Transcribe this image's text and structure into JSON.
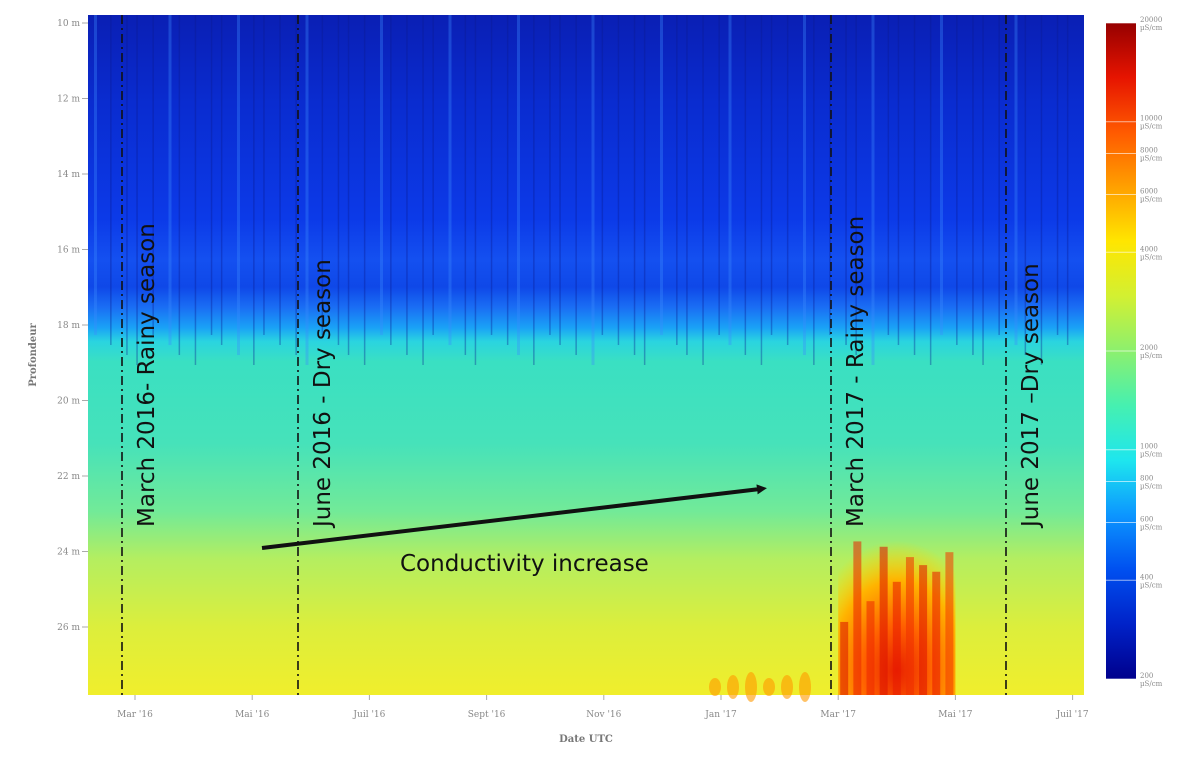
{
  "chart_data": {
    "type": "heatmap",
    "title": "",
    "xlabel": "Date UTC",
    "ylabel": "Profondeur",
    "x_ticks": [
      "Mar '16",
      "Mai '16",
      "Juil '16",
      "Sept '16",
      "Nov '16",
      "Jan '17",
      "Mar '17",
      "Mai '17",
      "Juil '17"
    ],
    "y_ticks": [
      "10 m",
      "12 m",
      "14 m",
      "16 m",
      "18 m",
      "20 m",
      "22 m",
      "24 m",
      "26 m"
    ],
    "ylim": [
      10,
      28
    ],
    "y_inverted": true,
    "grid": false,
    "colorbar": {
      "unit": "µS/cm",
      "scale": "log",
      "range": [
        200,
        20000
      ],
      "ticks": [
        200,
        400,
        600,
        800,
        1000,
        2000,
        4000,
        6000,
        8000,
        10000,
        20000
      ],
      "tick_labels": [
        "200",
        "400",
        "600",
        "800",
        "1000",
        "2000",
        "4000",
        "6000",
        "8000",
        "10000",
        "20000"
      ],
      "colors": [
        "#00008c",
        "#0022c8",
        "#0050f0",
        "#0c96ff",
        "#1ee6ee",
        "#46f0b0",
        "#8cf06e",
        "#d2f032",
        "#ffe600",
        "#ffa000",
        "#ff5a00",
        "#e61400",
        "#960000"
      ]
    },
    "depth_layers": [
      {
        "depth_from": 10,
        "depth_to": 17.4,
        "conductivity_uScm": 450
      },
      {
        "depth_from": 17.4,
        "depth_to": 18.8,
        "conductivity_uScm": 1300
      },
      {
        "depth_from": 18.8,
        "depth_to": 24,
        "conductivity_uScm": 2000
      },
      {
        "depth_from": 24,
        "depth_to": 28,
        "conductivity_uScm": 3800
      },
      {
        "x_from": "Mar '17",
        "x_to": "Mai '17",
        "depth_from": 23.5,
        "depth_to": 28,
        "conductivity_uScm": 12000
      }
    ],
    "annotations": [
      {
        "label": "March 2016- Rainy season",
        "x": "Feb '16"
      },
      {
        "label": "June 2016 - Dry season",
        "x": "Jun '16"
      },
      {
        "label": "March 2017 - Rainy season",
        "x": "Mar '17"
      },
      {
        "label": "June 2017 –Dry season",
        "x": "Jun '17"
      }
    ],
    "arrow_label": "Conductivity increase"
  }
}
